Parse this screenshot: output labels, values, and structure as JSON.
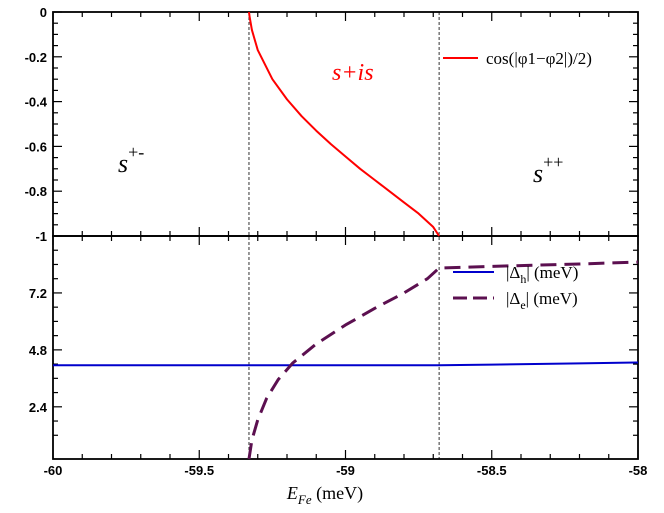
{
  "chart_data": [
    {
      "type": "line",
      "panel": "top",
      "xlim": [
        -60,
        -58
      ],
      "ylim": [
        -1,
        0
      ],
      "x_ticks": [
        -60,
        -59.5,
        -59,
        -58.5,
        -58
      ],
      "y_ticks": [
        0,
        -0.2,
        -0.4,
        -0.6,
        -0.8,
        -1
      ],
      "y_tick_labels": [
        "0",
        "-0.2",
        "-0.4",
        "-0.6",
        "-0.8",
        "-1"
      ],
      "series": [
        {
          "name": "cos(|φ1−φ2|)/2)",
          "color": "#ff0000",
          "style": "solid",
          "x": [
            -59.33,
            -59.328,
            -59.32,
            -59.3,
            -59.25,
            -59.2,
            -59.15,
            -59.1,
            -59.05,
            -59.0,
            -58.95,
            -58.9,
            -58.85,
            -58.8,
            -58.75,
            -58.7,
            -58.68
          ],
          "y": [
            0,
            -0.02,
            -0.08,
            -0.17,
            -0.3,
            -0.39,
            -0.465,
            -0.53,
            -0.59,
            -0.645,
            -0.7,
            -0.75,
            -0.8,
            -0.85,
            -0.9,
            -0.96,
            -1.0
          ]
        }
      ],
      "annotations": {
        "s_plus_minus": {
          "base": "s",
          "sup": "+-"
        },
        "s_plus_is": "s+is",
        "s_plus_plus": {
          "base": "s",
          "sup": "++"
        }
      },
      "vlines": [
        -59.33,
        -58.68
      ]
    },
    {
      "type": "line",
      "panel": "bottom",
      "xlim": [
        -60,
        -58
      ],
      "ylim": [
        0.2,
        9.6
      ],
      "x_ticks": [
        -60,
        -59.5,
        -59,
        -58.5,
        -58
      ],
      "x_tick_labels": [
        "-60",
        "-59.5",
        "-59",
        "-58.5",
        "-58"
      ],
      "y_ticks": [
        2.4,
        4.8,
        7.2
      ],
      "y_tick_labels": [
        "2.4",
        "4.8",
        "7.2"
      ],
      "xlabel": {
        "base": "E",
        "sub": "Fe",
        "unit": " (meV)"
      },
      "series": [
        {
          "name": "|Δh| (meV)",
          "legend": {
            "pre": "|Δ",
            "sub": "h",
            "post": "| (meV)"
          },
          "color": "#0000cc",
          "style": "solid",
          "x": [
            -60,
            -59.5,
            -59.33,
            -59.0,
            -58.68,
            -58.5,
            -58.2,
            -58.0
          ],
          "y": [
            4.15,
            4.15,
            4.15,
            4.15,
            4.15,
            4.18,
            4.23,
            4.27
          ]
        },
        {
          "name": "|Δe| (meV)",
          "legend": {
            "pre": "|Δ",
            "sub": "e",
            "post": "| (meV)"
          },
          "color": "#5c1050",
          "style": "dashed",
          "x": [
            -59.33,
            -59.32,
            -59.3,
            -59.27,
            -59.23,
            -59.18,
            -59.1,
            -59.0,
            -58.9,
            -58.8,
            -58.72,
            -58.68,
            -58.5,
            -58.2,
            -58.0
          ],
          "y": [
            0.2,
            1.0,
            1.85,
            2.75,
            3.55,
            4.25,
            5.05,
            5.85,
            6.55,
            7.2,
            7.8,
            8.25,
            8.32,
            8.42,
            8.5
          ]
        }
      ],
      "vlines": [
        -59.33,
        -58.68
      ]
    }
  ]
}
